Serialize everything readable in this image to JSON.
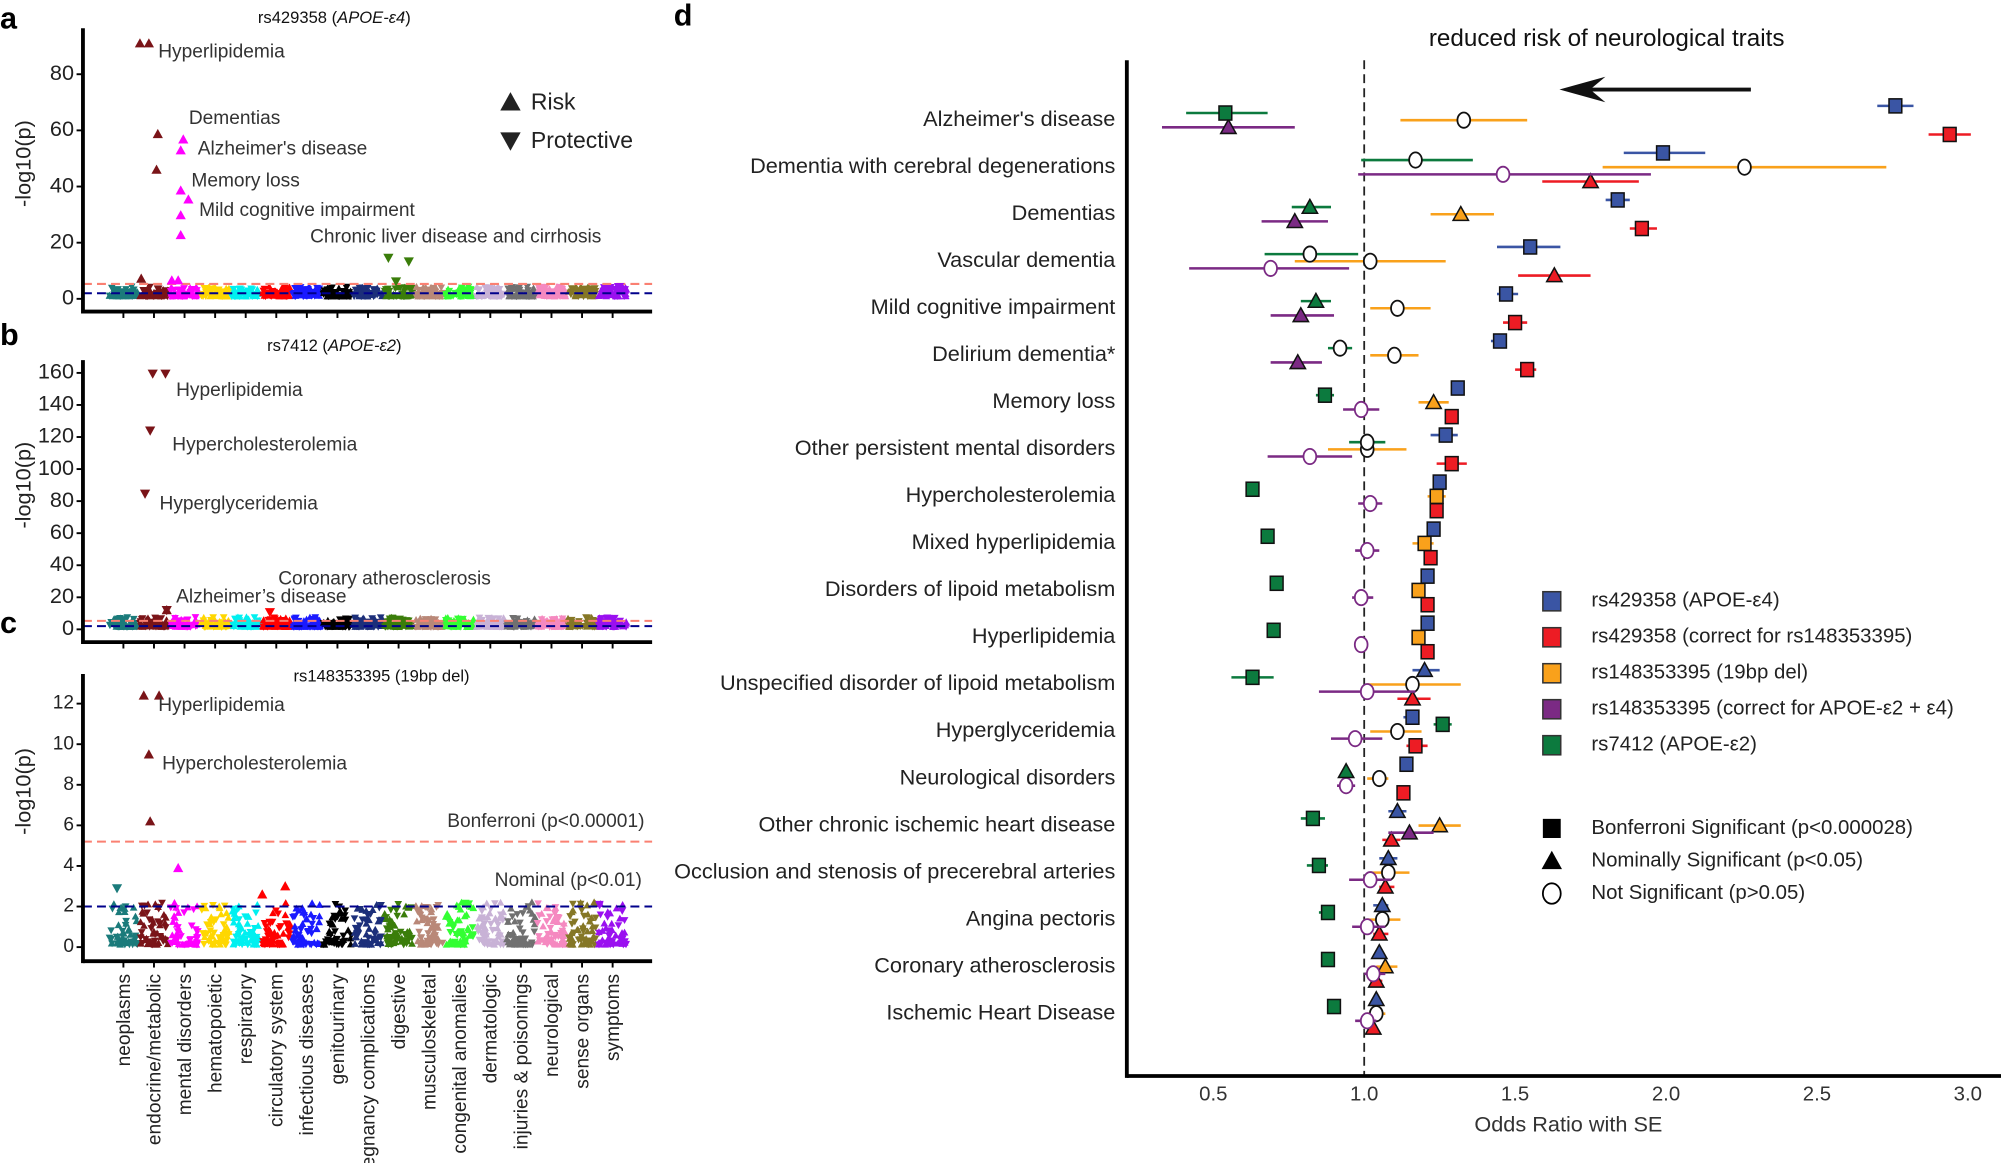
{
  "categories": [
    "neoplasms",
    "endocrine/metabolic",
    "mental disorders",
    "hematopoietic",
    "respiratory",
    "circulatory system",
    "infectious diseases",
    "genitourinary",
    "pregnancy complications",
    "digestive",
    "musculoskeletal",
    "congenital anomalies",
    "dermatologic",
    "injuries & poisonings",
    "neurological",
    "sense organs",
    "symptoms"
  ],
  "category_colors": [
    "#1b7b7b",
    "#7a1418",
    "#ff00ff",
    "#ffd700",
    "#00f0f0",
    "#ff0000",
    "#1a1aff",
    "#000000",
    "#1c2f7a",
    "#3a7d0a",
    "#b98878",
    "#33ff33",
    "#c8b2d6",
    "#707070",
    "#f589c0",
    "#857726",
    "#9a10f0"
  ],
  "threshold_colors": {
    "bonferroni": "#fa8072",
    "nominal": "#00008b"
  },
  "chart_data": [
    {
      "panel": "a",
      "type": "scatter",
      "title_prefix": "rs429358 (",
      "title_italic": "APOE-ε4",
      "title_suffix": ")",
      "ylabel": "-log10(p)",
      "ylim": [
        0,
        95
      ],
      "yticks": [
        0,
        20,
        40,
        60,
        80
      ],
      "thresholds": {
        "bonferroni": 5.3,
        "nominal": 2
      },
      "legend": [
        {
          "symbol": "triangle-up",
          "label": "Risk"
        },
        {
          "symbol": "triangle-down",
          "label": "Protective"
        }
      ],
      "points": [
        {
          "category": 1,
          "value": 91,
          "direction": "up"
        },
        {
          "category": 1,
          "value": 91,
          "direction": "up"
        },
        {
          "category": 1,
          "value": 58.7,
          "direction": "up"
        },
        {
          "category": 1,
          "value": 46,
          "direction": "up"
        },
        {
          "category": 1,
          "value": 7.2,
          "direction": "up"
        },
        {
          "category": 2,
          "value": 56.8,
          "direction": "up"
        },
        {
          "category": 2,
          "value": 52.9,
          "direction": "up"
        },
        {
          "category": 2,
          "value": 38.6,
          "direction": "up"
        },
        {
          "category": 2,
          "value": 35.4,
          "direction": "up"
        },
        {
          "category": 2,
          "value": 29.8,
          "direction": "up"
        },
        {
          "category": 2,
          "value": 22.7,
          "direction": "up"
        },
        {
          "category": 2,
          "value": 6.6,
          "direction": "up"
        },
        {
          "category": 2,
          "value": 6.6,
          "direction": "up"
        },
        {
          "category": 9,
          "value": 14.6,
          "direction": "down"
        },
        {
          "category": 9,
          "value": 13.3,
          "direction": "down"
        },
        {
          "category": 9,
          "value": 6.2,
          "direction": "down"
        },
        {
          "category": 16,
          "value": 4.2,
          "direction": "down"
        }
      ],
      "annotations": [
        "Hyperlipidemia",
        "Dementias",
        "Alzheimer's disease",
        "Memory loss",
        "Mild cognitive impairment",
        "Chronic liver disease and cirrhosis"
      ]
    },
    {
      "panel": "b",
      "type": "scatter",
      "title_prefix": "rs7412 (",
      "title_italic": "APOE-ε2",
      "title_suffix": ")",
      "ylabel": "-log10(p)",
      "ylim": [
        0,
        168
      ],
      "yticks": [
        0,
        20,
        40,
        60,
        80,
        100,
        120,
        140,
        160
      ],
      "thresholds": {
        "bonferroni": 5.3,
        "nominal": 2
      },
      "points": [
        {
          "category": 1,
          "value": 159.5,
          "direction": "down"
        },
        {
          "category": 1,
          "value": 159.5,
          "direction": "down"
        },
        {
          "category": 1,
          "value": 124,
          "direction": "down"
        },
        {
          "category": 1,
          "value": 84.6,
          "direction": "down"
        },
        {
          "category": 1,
          "value": 12,
          "direction": "up"
        },
        {
          "category": 1,
          "value": 12,
          "direction": "down"
        },
        {
          "category": 5,
          "value": 10.7,
          "direction": "down"
        }
      ],
      "annotations": [
        "Hyperlipidemia",
        "Hypercholesterolemia",
        "Hyperglyceridemia",
        "Coronary atherosclerosis",
        "Alzheimer’s disease"
      ]
    },
    {
      "panel": "c",
      "type": "scatter",
      "title_prefix": "rs148353395 (19bp del)",
      "title_italic": "",
      "title_suffix": "",
      "ylabel": "-log10(p)",
      "ylim": [
        0,
        13
      ],
      "yticks": [
        0,
        2,
        4,
        6,
        8,
        10,
        12
      ],
      "thresholds": {
        "bonferroni": 5.2,
        "nominal": 2
      },
      "threshold_labels": {
        "bonferroni": "Bonferroni (p<0.00001)",
        "nominal": "Nominal (p<0.01)"
      },
      "points": [
        {
          "category": 1,
          "value": 12.4,
          "direction": "up"
        },
        {
          "category": 1,
          "value": 12.4,
          "direction": "up"
        },
        {
          "category": 1,
          "value": 9.5,
          "direction": "up"
        },
        {
          "category": 1,
          "value": 6.2,
          "direction": "up"
        },
        {
          "category": 2,
          "value": 3.9,
          "direction": "up"
        },
        {
          "category": 0,
          "value": 2.9,
          "direction": "down"
        },
        {
          "category": 5,
          "value": 2.6,
          "direction": "up"
        },
        {
          "category": 5,
          "value": 3.0,
          "direction": "up"
        }
      ],
      "annotations": [
        "Hyperlipidemia",
        "Hypercholesterolemia"
      ]
    },
    {
      "panel": "d",
      "type": "forest",
      "title": "reduced risk of neurological traits",
      "xlabel": "Odds Ratio with SE",
      "xlim": [
        0.3,
        3.1
      ],
      "xticks": [
        "0.5",
        "1.0",
        "1.5",
        "2.0",
        "2.5",
        "3.0"
      ],
      "reference_line": 1.0,
      "traits": [
        "Alzheimer's disease",
        "Dementia with cerebral degenerations",
        "Dementias",
        "Vascular dementia",
        "Mild cognitive impairment",
        "Delirium dementia*",
        "Memory loss",
        "Other persistent mental disorders",
        "Hypercholesterolemia",
        "Mixed hyperlipidemia",
        "Disorders of lipoid metabolism",
        "Hyperlipidemia",
        "Unspecified disorder of lipoid metabolism",
        "Hyperglyceridemia",
        "Neurological disorders",
        "Other chronic ischemic heart disease",
        "Occlusion and stenosis of precerebral arteries",
        "Angina pectoris",
        "Coronary atherosclerosis",
        "Ischemic Heart Disease"
      ],
      "series": [
        {
          "name": "rs429358 (APOE-ε4)",
          "color": "#3a55a4",
          "values": [
            [
              2.76,
              2.7,
              2.82,
              "B"
            ],
            [
              1.99,
              1.86,
              2.13,
              "B"
            ],
            [
              1.84,
              1.8,
              1.88,
              "B"
            ],
            [
              1.55,
              1.44,
              1.65,
              "B"
            ],
            [
              1.47,
              1.44,
              1.51,
              "B"
            ],
            [
              1.45,
              1.42,
              1.47,
              "B"
            ],
            [
              1.31,
              1.3,
              1.32,
              "B"
            ],
            [
              1.27,
              1.22,
              1.31,
              "B"
            ],
            [
              1.25,
              1.24,
              1.26,
              "B"
            ],
            [
              1.23,
              1.22,
              1.24,
              "B"
            ],
            [
              1.21,
              1.2,
              1.22,
              "B"
            ],
            [
              1.21,
              1.2,
              1.22,
              "B"
            ],
            [
              1.2,
              1.16,
              1.25,
              "N"
            ],
            [
              1.16,
              1.13,
              1.18,
              "B"
            ],
            [
              1.14,
              1.13,
              1.15,
              "B"
            ],
            [
              1.11,
              1.08,
              1.14,
              "N"
            ],
            [
              1.08,
              1.05,
              1.11,
              "N"
            ],
            [
              1.06,
              1.03,
              1.08,
              "N"
            ],
            [
              1.05,
              1.04,
              1.06,
              "N"
            ],
            [
              1.04,
              1.03,
              1.05,
              "N"
            ]
          ]
        },
        {
          "name": "rs429358 (correct for rs148353395)",
          "color": "#ed1c24",
          "values": [
            [
              2.94,
              2.87,
              3.01,
              "B"
            ],
            [
              1.75,
              1.59,
              1.91,
              "N"
            ],
            [
              1.92,
              1.88,
              1.97,
              "B"
            ],
            [
              1.63,
              1.51,
              1.75,
              "N"
            ],
            [
              1.5,
              1.46,
              1.54,
              "B"
            ],
            [
              1.54,
              1.5,
              1.57,
              "B"
            ],
            [
              1.29,
              1.27,
              1.31,
              "B"
            ],
            [
              1.29,
              1.24,
              1.34,
              "B"
            ],
            [
              1.24,
              1.23,
              1.25,
              "B"
            ],
            [
              1.22,
              1.21,
              1.23,
              "B"
            ],
            [
              1.21,
              1.2,
              1.22,
              "B"
            ],
            [
              1.21,
              1.2,
              1.22,
              "B"
            ],
            [
              1.16,
              1.11,
              1.22,
              "N"
            ],
            [
              1.17,
              1.14,
              1.21,
              "B"
            ],
            [
              1.13,
              1.12,
              1.14,
              "B"
            ],
            [
              1.09,
              1.06,
              1.12,
              "N"
            ],
            [
              1.07,
              1.05,
              1.1,
              "N"
            ],
            [
              1.05,
              1.03,
              1.08,
              "N"
            ],
            [
              1.04,
              1.02,
              1.06,
              "N"
            ],
            [
              1.03,
              1.02,
              1.04,
              "N"
            ]
          ]
        },
        {
          "name": "rs148353395 (19bp del)",
          "color": "#f9a11b",
          "values": [
            [
              1.33,
              1.12,
              1.54,
              "NS"
            ],
            [
              2.26,
              1.79,
              2.73,
              "NS"
            ],
            [
              1.32,
              1.22,
              1.43,
              "N"
            ],
            [
              1.02,
              0.77,
              1.27,
              "NS"
            ],
            [
              1.11,
              1.02,
              1.22,
              "NS"
            ],
            [
              1.1,
              1.02,
              1.18,
              "NS"
            ],
            [
              1.23,
              1.18,
              1.28,
              "N"
            ],
            [
              1.01,
              0.88,
              1.14,
              "NS"
            ],
            [
              1.24,
              1.21,
              1.27,
              "B"
            ],
            [
              1.2,
              1.16,
              1.23,
              "B"
            ],
            [
              1.18,
              1.16,
              1.2,
              "B"
            ],
            [
              1.18,
              1.16,
              1.2,
              "B"
            ],
            [
              1.16,
              1.01,
              1.32,
              "NS"
            ],
            [
              1.11,
              1.02,
              1.19,
              "NS"
            ],
            [
              1.05,
              1.01,
              1.08,
              "NS"
            ],
            [
              1.25,
              1.18,
              1.32,
              "N"
            ],
            [
              1.08,
              1.02,
              1.15,
              "NS"
            ],
            [
              1.06,
              1.01,
              1.12,
              "NS"
            ],
            [
              1.07,
              1.04,
              1.11,
              "N"
            ],
            [
              1.04,
              1.01,
              1.07,
              "NS"
            ]
          ]
        },
        {
          "name": "rs148353395 (correct for APOE-ε2 + ε4)",
          "color": "#7b2a84",
          "values": [
            [
              0.55,
              0.33,
              0.77,
              "N"
            ],
            [
              1.46,
              0.98,
              1.95,
              "NS"
            ],
            [
              0.77,
              0.66,
              0.88,
              "N"
            ],
            [
              0.69,
              0.42,
              0.95,
              "NS"
            ],
            [
              0.79,
              0.69,
              0.9,
              "N"
            ],
            [
              0.78,
              0.69,
              0.86,
              "N"
            ],
            [
              0.99,
              0.93,
              1.05,
              "NS"
            ],
            [
              0.82,
              0.68,
              0.96,
              "NS"
            ],
            [
              1.02,
              0.98,
              1.06,
              "NS"
            ],
            [
              1.01,
              0.97,
              1.05,
              "NS"
            ],
            [
              0.99,
              0.96,
              1.03,
              "NS"
            ],
            [
              0.99,
              0.97,
              1.01,
              "NS"
            ],
            [
              1.01,
              0.85,
              1.17,
              "NS"
            ],
            [
              0.97,
              0.89,
              1.06,
              "NS"
            ],
            [
              0.94,
              0.91,
              0.97,
              "NS"
            ],
            [
              1.15,
              1.08,
              1.23,
              "N"
            ],
            [
              1.02,
              0.95,
              1.09,
              "NS"
            ],
            [
              1.01,
              0.96,
              1.07,
              "NS"
            ],
            [
              1.03,
              1.0,
              1.07,
              "NS"
            ],
            [
              1.01,
              0.97,
              1.04,
              "NS"
            ]
          ]
        },
        {
          "name": "rs7412 (APOE-ε2)",
          "color": "#0c7a3e",
          "values": [
            [
              0.54,
              0.41,
              0.68,
              "B"
            ],
            [
              1.17,
              0.99,
              1.36,
              "NS"
            ],
            [
              0.82,
              0.76,
              0.89,
              "N"
            ],
            [
              0.82,
              0.67,
              0.98,
              "NS"
            ],
            [
              0.84,
              0.79,
              0.89,
              "N"
            ],
            [
              0.92,
              0.88,
              0.96,
              "NS"
            ],
            [
              0.87,
              0.84,
              0.9,
              "B"
            ],
            [
              1.01,
              0.95,
              1.07,
              "NS"
            ],
            [
              0.63,
              0.62,
              0.64,
              "B"
            ],
            [
              0.68,
              0.67,
              0.69,
              "B"
            ],
            [
              0.71,
              0.7,
              0.72,
              "B"
            ],
            [
              0.7,
              0.69,
              0.71,
              "B"
            ],
            [
              0.63,
              0.56,
              0.7,
              "B"
            ],
            [
              1.26,
              1.23,
              1.29,
              "B"
            ],
            [
              0.94,
              0.93,
              0.95,
              "N"
            ],
            [
              0.83,
              0.79,
              0.87,
              "B"
            ],
            [
              0.85,
              0.81,
              0.88,
              "B"
            ],
            [
              0.88,
              0.85,
              0.9,
              "B"
            ],
            [
              0.88,
              0.87,
              0.89,
              "B"
            ],
            [
              0.9,
              0.89,
              0.91,
              "B"
            ]
          ]
        }
      ],
      "significance_legend": [
        {
          "code": "B",
          "symbol": "square",
          "label": "Bonferroni Significant (p<0.000028)"
        },
        {
          "code": "N",
          "symbol": "triangle",
          "label": "Nominally Significant (p<0.05)"
        },
        {
          "code": "NS",
          "symbol": "open-circle",
          "label": "Not Significant (p>0.05)"
        }
      ]
    }
  ]
}
